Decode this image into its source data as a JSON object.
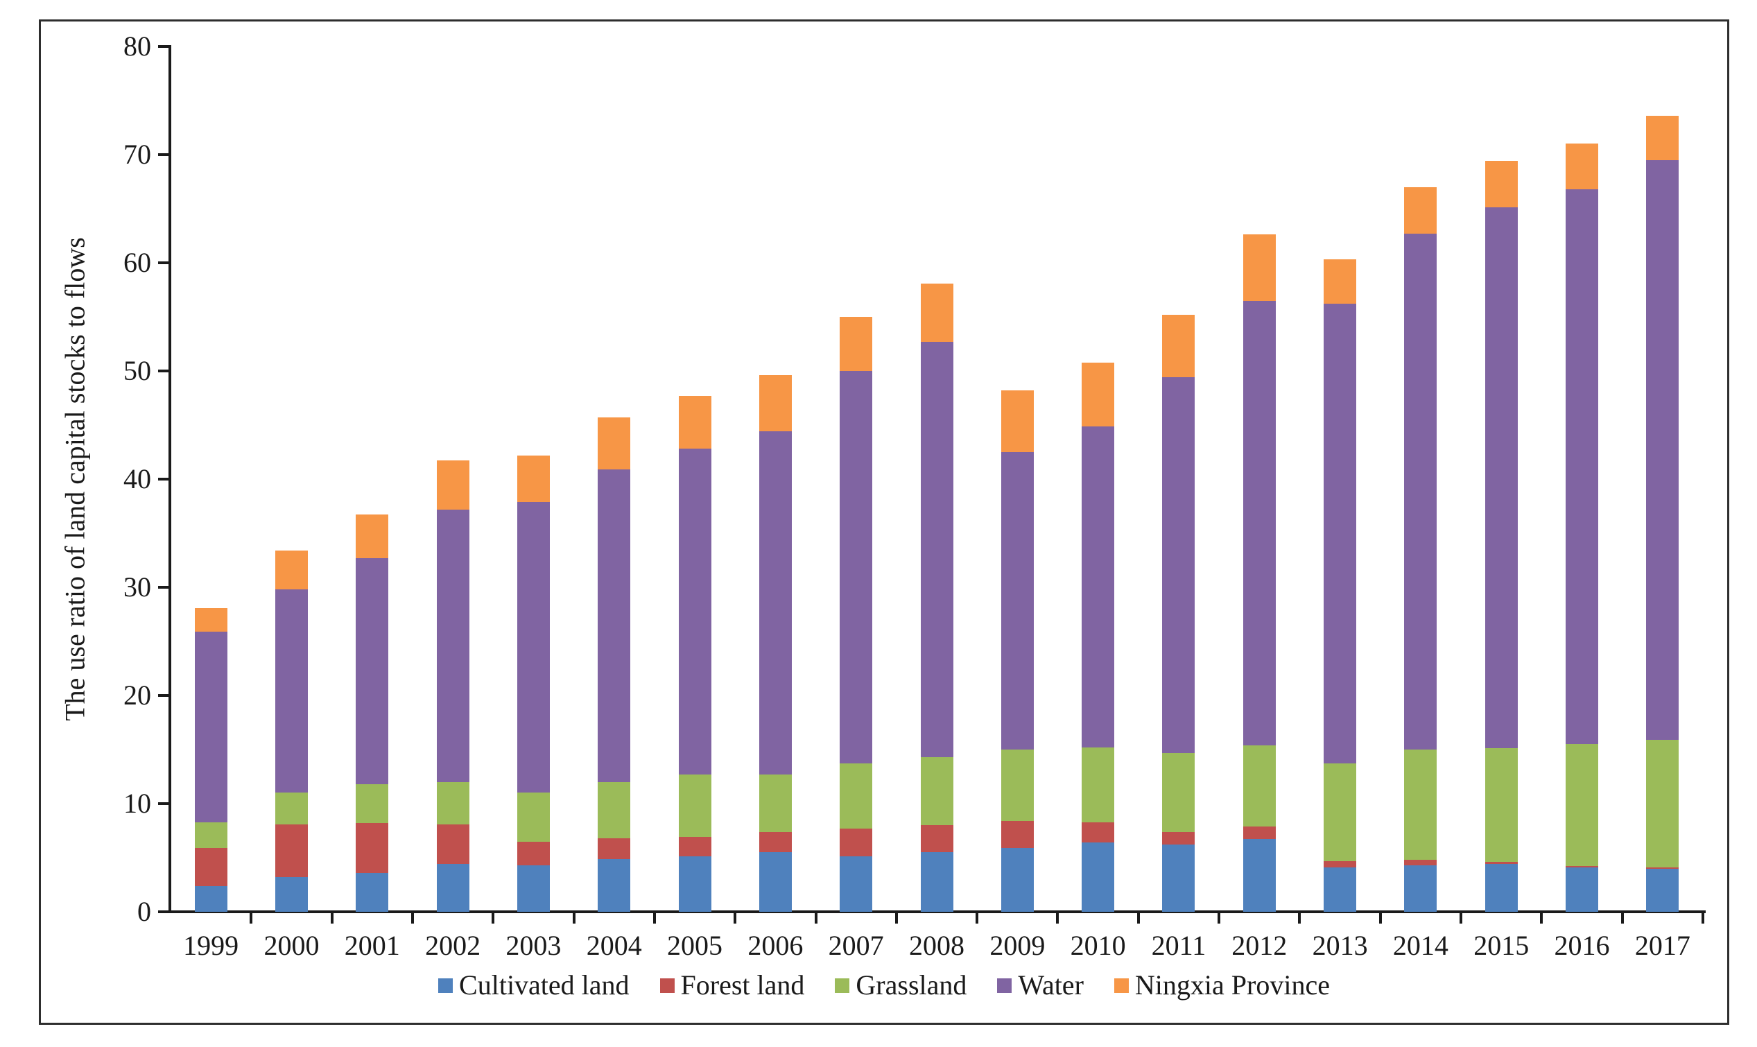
{
  "figure": {
    "y_axis_title": "The use ratio of land capital stocks to flows"
  },
  "chart_data": {
    "type": "bar",
    "stacked": true,
    "title": "",
    "xlabel": "",
    "ylabel": "The use ratio of land capital stocks to flows",
    "ylim": [
      0,
      80
    ],
    "yticks": [
      0,
      10,
      20,
      30,
      40,
      50,
      60,
      70,
      80
    ],
    "grid": false,
    "legend_position": "bottom",
    "categories": [
      "1999",
      "2000",
      "2001",
      "2002",
      "2003",
      "2004",
      "2005",
      "2006",
      "2007",
      "2008",
      "2009",
      "2010",
      "2011",
      "2012",
      "2013",
      "2014",
      "2015",
      "2016",
      "2017"
    ],
    "series": [
      {
        "name": "Cultivated land",
        "color": "#4F81BD",
        "values": [
          2.4,
          3.2,
          3.6,
          4.4,
          4.3,
          4.9,
          5.1,
          5.5,
          5.1,
          5.5,
          5.9,
          6.4,
          6.2,
          6.7,
          4.1,
          4.3,
          4.4,
          4.1,
          4.0
        ]
      },
      {
        "name": "Forest land",
        "color": "#C0504D",
        "values": [
          3.5,
          4.9,
          4.6,
          3.7,
          2.2,
          1.9,
          1.8,
          1.9,
          2.6,
          2.5,
          2.5,
          1.9,
          1.2,
          1.2,
          0.6,
          0.5,
          0.2,
          0.15,
          0.1
        ]
      },
      {
        "name": "Grassland",
        "color": "#9BBB59",
        "values": [
          2.4,
          2.9,
          3.6,
          3.9,
          4.5,
          5.2,
          5.8,
          5.3,
          6.0,
          6.3,
          6.6,
          6.9,
          7.3,
          7.5,
          9.0,
          10.2,
          10.5,
          11.25,
          11.8
        ]
      },
      {
        "name": "Water",
        "color": "#8064A2",
        "values": [
          17.6,
          18.8,
          20.9,
          25.2,
          26.9,
          28.9,
          30.1,
          31.7,
          36.3,
          38.4,
          27.5,
          29.7,
          34.7,
          41.1,
          42.5,
          47.7,
          50.0,
          51.3,
          53.6
        ]
      },
      {
        "name": "Ningxia Province",
        "color": "#F79646",
        "values": [
          2.2,
          3.6,
          4.0,
          4.5,
          4.3,
          4.8,
          4.9,
          5.2,
          5.0,
          5.4,
          5.7,
          5.9,
          5.8,
          6.1,
          4.1,
          4.3,
          4.3,
          4.2,
          4.1
        ]
      }
    ],
    "totals": [
      28.1,
      33.4,
      36.7,
      41.7,
      42.2,
      45.7,
      47.7,
      49.6,
      55.0,
      58.1,
      48.2,
      50.8,
      55.2,
      62.6,
      60.3,
      67.0,
      69.4,
      71.0,
      73.6
    ]
  }
}
